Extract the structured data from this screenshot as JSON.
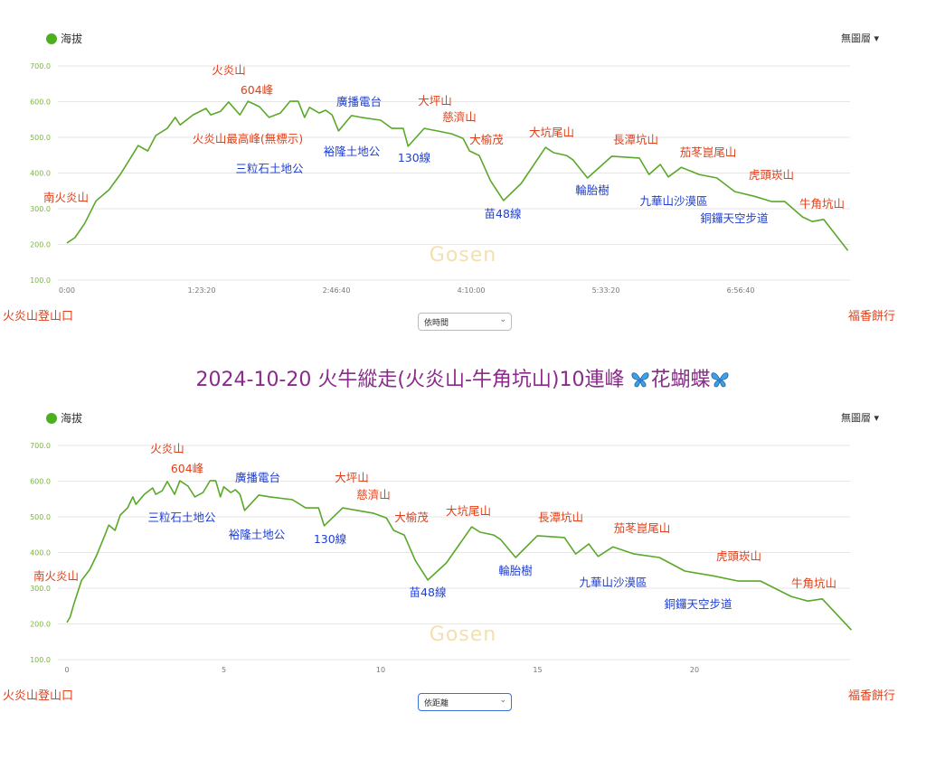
{
  "legend": {
    "series": "海拔",
    "layers": "無圖層 ▾"
  },
  "title": {
    "text": "2024-10-20 火牛縱走(火炎山-牛角坑山)10連峰 ",
    "suffix": "花蝴蝶",
    "icon": "butterfly-icon"
  },
  "watermark": "Gosen",
  "start_label": "火炎山登山口",
  "end_label": "福香餅行",
  "landmarks": {
    "huoyanshan": "火炎山",
    "peak604": "604峰",
    "highest": "火炎山最高峰(無標示)",
    "sanlishi": "三粒石土地公",
    "broadcast": "廣播電台",
    "yulong": "裕隆土地公",
    "line130": "130線",
    "dapingshan": "大坪山",
    "ciji": "慈濟山",
    "dayoumao": "大榆茂",
    "dakengwei": "大坑尾山",
    "miao48": "苗48線",
    "changtan": "長潭坑山",
    "tire": "輪胎樹",
    "jiadong": "茄苳崑尾山",
    "jiuhua": "九華山沙漠區",
    "hutou": "虎頭崁山",
    "tongluo": "銅鑼天空步道",
    "niujiao": "牛角坑山",
    "nanhuo": "南火炎山"
  },
  "colors": {
    "line": "#5aa829",
    "red": "#e0401a",
    "blue": "#1f3fd0",
    "ytick": "#7cb342"
  },
  "chart_data": [
    {
      "type": "line",
      "xmode": "time",
      "select": "依時間",
      "xlabel": "",
      "ylabel": "海拔",
      "ylim": [
        100,
        700
      ],
      "yticks": [
        "100.0",
        "200.0",
        "300.0",
        "400.0",
        "500.0",
        "600.0",
        "700.0"
      ],
      "xticks": [
        {
          "v": 0,
          "label": "0:00"
        },
        {
          "v": 83.33,
          "label": "1:23:20"
        },
        {
          "v": 166.67,
          "label": "2:46:40"
        },
        {
          "v": 250,
          "label": "4:10:00"
        },
        {
          "v": 333.33,
          "label": "5:33:20"
        },
        {
          "v": 416.67,
          "label": "6:56:40"
        }
      ],
      "xlim": [
        0,
        484
      ],
      "grid": true
    },
    {
      "type": "line",
      "xmode": "distance",
      "select": "依距離",
      "xlabel": "",
      "ylabel": "海拔",
      "ylim": [
        100,
        700
      ],
      "yticks": [
        "100.0",
        "200.0",
        "300.0",
        "400.0",
        "500.0",
        "600.0",
        "700.0"
      ],
      "xticks": [
        {
          "v": 0,
          "label": "0"
        },
        {
          "v": 5,
          "label": "5"
        },
        {
          "v": 10,
          "label": "10"
        },
        {
          "v": 15,
          "label": "15"
        },
        {
          "v": 20,
          "label": "20"
        }
      ],
      "xlim": [
        0,
        25
      ],
      "grid": true
    }
  ],
  "profile": {
    "time_min": [
      0,
      5,
      11,
      18,
      26,
      33,
      41,
      44,
      50,
      55,
      62,
      67,
      70,
      78,
      86,
      89,
      95,
      100,
      107,
      112,
      119,
      125,
      132,
      138,
      143,
      147,
      150,
      156,
      160,
      164,
      168,
      176,
      182,
      194,
      201,
      208,
      211,
      221,
      229,
      238,
      245,
      249,
      255,
      262,
      270,
      281,
      296,
      301,
      309,
      313,
      322,
      337,
      354,
      360,
      367,
      372,
      380,
      391,
      402,
      413,
      425,
      436,
      444,
      455,
      461,
      468,
      483
    ],
    "elevation_m": [
      204,
      219,
      259,
      322,
      353,
      396,
      454,
      477,
      462,
      505,
      525,
      556,
      535,
      563,
      581,
      563,
      573,
      599,
      563,
      601,
      586,
      556,
      568,
      601,
      601,
      556,
      584,
      568,
      576,
      563,
      518,
      561,
      556,
      548,
      525,
      525,
      475,
      525,
      518,
      510,
      497,
      462,
      449,
      378,
      323,
      371,
      472,
      457,
      449,
      437,
      386,
      447,
      442,
      396,
      424,
      389,
      416,
      396,
      386,
      348,
      335,
      320,
      320,
      277,
      264,
      270,
      183
    ],
    "time_to_km": [
      [
        0,
        0
      ],
      [
        10,
        0.2
      ],
      [
        100,
        3.2
      ],
      [
        112,
        3.6
      ],
      [
        169,
        5.7
      ],
      [
        211,
        8.2
      ],
      [
        228,
        9.2
      ],
      [
        254,
        10.7
      ],
      [
        270,
        11.5
      ],
      [
        322,
        14.3
      ],
      [
        348,
        15.5
      ],
      [
        390,
        18
      ],
      [
        424,
        20.5
      ],
      [
        436,
        21.4
      ],
      [
        462,
        23.7
      ],
      [
        483,
        25
      ]
    ]
  }
}
